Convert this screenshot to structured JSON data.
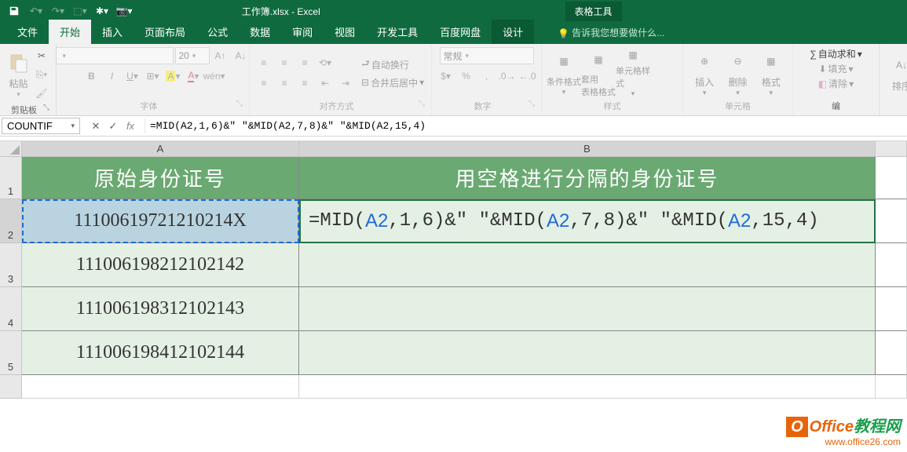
{
  "title": "工作簿.xlsx - Excel",
  "context_tab_group": "表格工具",
  "tabs": [
    "文件",
    "开始",
    "插入",
    "页面布局",
    "公式",
    "数据",
    "审阅",
    "视图",
    "开发工具",
    "百度网盘",
    "设计"
  ],
  "active_tab": "开始",
  "tell_me": "告诉我您想要做什么...",
  "ribbon": {
    "clipboard": {
      "paste": "粘贴",
      "label": "剪贴板"
    },
    "font": {
      "name": "",
      "size": "20",
      "label": "字体"
    },
    "align": {
      "wrap": "自动换行",
      "merge": "合并后居中",
      "label": "对齐方式"
    },
    "number": {
      "format": "常规",
      "label": "数字"
    },
    "styles": {
      "cond": "条件格式",
      "table": "套用\n表格格式",
      "cell": "单元格样式",
      "label": "样式"
    },
    "cells": {
      "insert": "插入",
      "delete": "删除",
      "format": "格式",
      "label": "单元格"
    },
    "editing": {
      "sum": "自动求和",
      "fill": "填充",
      "clear": "清除",
      "sort": "排序",
      "label": "编"
    }
  },
  "namebox": "COUNTIF",
  "formula": "=MID(A2,1,6)&\" \"&MID(A2,7,8)&\" \"&MID(A2,15,4)",
  "columns": [
    "A",
    "B"
  ],
  "header_row": {
    "A": "原始身份证号",
    "B": "用空格进行分隔的身份证号"
  },
  "data_rows": [
    {
      "A": "11100619721210214X",
      "B_edit": true
    },
    {
      "A": "111006198212102142",
      "B": ""
    },
    {
      "A": "111006198312102143",
      "B": ""
    },
    {
      "A": "111006198412102144",
      "B": ""
    }
  ],
  "edit_parts": [
    "=MID(",
    "A2",
    ",1,6)&\" \"&MID(",
    "A2",
    ",7,8)&\" \"&MID(",
    "A2",
    ",15,4)"
  ],
  "row_heights": {
    "header": 54,
    "data": 56
  },
  "colors": {
    "theme": "#0f6b3f",
    "header_fill": "#6aa971",
    "data_fill": "#e5f0e5",
    "sel_outline": "#227447",
    "ref": "#1f6bd6",
    "src_fill": "#b9d4e0"
  },
  "watermark": {
    "brand1": "Office",
    "brand2": "教程网",
    "url": "www.office26.com"
  }
}
